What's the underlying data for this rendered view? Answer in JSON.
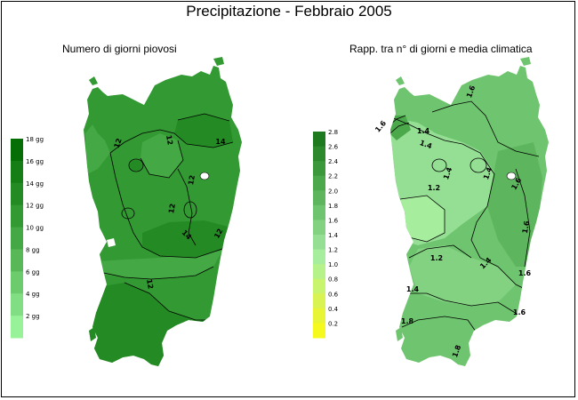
{
  "title": "Precipitazione - Febbraio 2005",
  "map_left": {
    "subtitle": "Numero di giorni piovosi",
    "legend": [
      {
        "label": "18 gg",
        "color": "#056f05"
      },
      {
        "label": "16 gg",
        "color": "#157f15"
      },
      {
        "label": "14 gg",
        "color": "#248b24"
      },
      {
        "label": "12 gg",
        "color": "#339933"
      },
      {
        "label": "10 gg",
        "color": "#44a944"
      },
      {
        "label": "8 gg",
        "color": "#58b858"
      },
      {
        "label": "6 gg",
        "color": "#6ccb6c"
      },
      {
        "label": "4 gg",
        "color": "#82de82"
      },
      {
        "label": "2 gg",
        "color": "#98f298"
      }
    ],
    "contour_labels": [
      "12",
      "12",
      "14",
      "12",
      "12",
      "14",
      "12",
      "12"
    ]
  },
  "map_right": {
    "subtitle": "Rapp. tra n° di giorni e media climatica",
    "legend": [
      {
        "label": "2.8",
        "color": "#1e7a1e"
      },
      {
        "label": "2.6",
        "color": "#2c8a2c"
      },
      {
        "label": "2.4",
        "color": "#3b993b"
      },
      {
        "label": "2.2",
        "color": "#4ba84b"
      },
      {
        "label": "2.0",
        "color": "#5db65d"
      },
      {
        "label": "1.8",
        "color": "#6fc46f"
      },
      {
        "label": "1.6",
        "color": "#82d282"
      },
      {
        "label": "1.4",
        "color": "#94df94"
      },
      {
        "label": "1.2",
        "color": "#a6ed9e"
      },
      {
        "label": "1.0",
        "color": "#b6f28a"
      },
      {
        "label": "0.8",
        "color": "#c8f46e"
      },
      {
        "label": "0.6",
        "color": "#d9f352"
      },
      {
        "label": "0.4",
        "color": "#e8f536"
      },
      {
        "label": "0.2",
        "color": "#f6f91e"
      }
    ],
    "contour_labels": [
      "1.6",
      "1.4",
      "1.4",
      "1.4",
      "1.2",
      "1.4",
      "1.6",
      "1.6",
      "1.2",
      "1.4",
      "1.4",
      "1.6",
      "1.6",
      "1.8",
      "1.8",
      "1.6"
    ]
  }
}
